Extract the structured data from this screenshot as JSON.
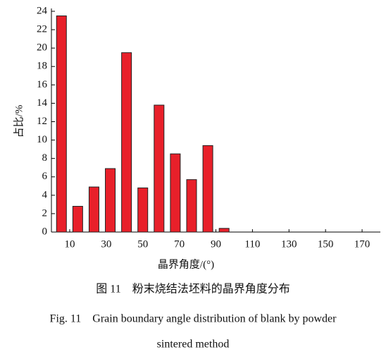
{
  "chart_data": {
    "type": "bar",
    "x": [
      5.5,
      14.4,
      23.3,
      32.2,
      41.1,
      50,
      58.9,
      67.8,
      76.7,
      85.6,
      94.5
    ],
    "values": [
      23.5,
      2.8,
      4.9,
      6.9,
      19.5,
      4.8,
      13.8,
      8.5,
      5.7,
      9.4,
      0.4
    ],
    "color": "#e8202a",
    "xlabel": "晶界角度/(°)",
    "ylabel": "占比/%",
    "xlim": [
      0,
      180
    ],
    "xticks": [
      10,
      30,
      50,
      70,
      90,
      110,
      130,
      150,
      170
    ],
    "ylim": [
      0,
      24
    ],
    "yticks": [
      0,
      2,
      4,
      6,
      8,
      10,
      12,
      14,
      16,
      18,
      20,
      22,
      24
    ],
    "caption_cn": "图 11　粉末烧结法坯料的晶界角度分布",
    "caption_en_1": "Fig. 11　Grain boundary angle distribution of blank by powder",
    "caption_en_2": "sintered method"
  }
}
